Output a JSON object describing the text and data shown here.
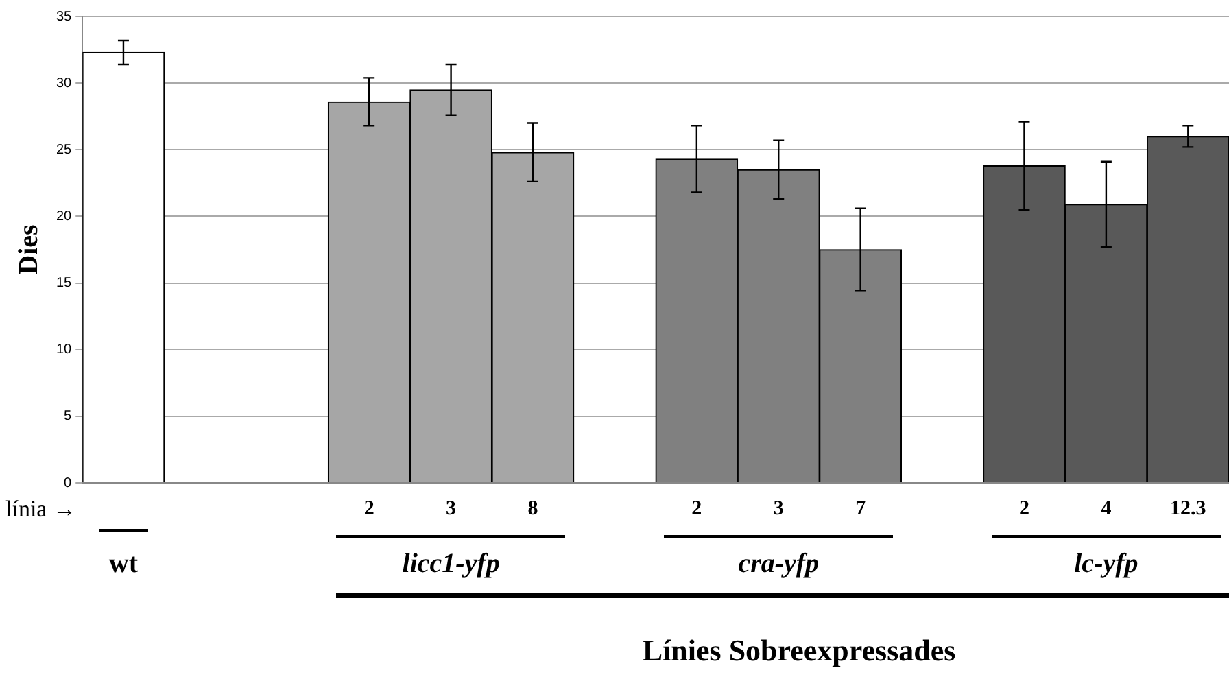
{
  "chart_data": {
    "type": "bar",
    "ylabel": "Dies",
    "xlabel": "Línies Sobreexpressades",
    "categories": [
      null,
      null,
      null,
      "2",
      "3",
      "8",
      null,
      "2",
      "3",
      "7",
      null,
      "2",
      "4",
      "12.3"
    ],
    "values": [
      32.3,
      null,
      null,
      28.6,
      29.5,
      24.8,
      null,
      24.3,
      23.5,
      17.5,
      null,
      23.8,
      20.9,
      26.0
    ],
    "errors": [
      0.9,
      null,
      null,
      1.8,
      1.9,
      2.2,
      null,
      2.5,
      2.2,
      3.1,
      null,
      3.3,
      3.2,
      0.8
    ],
    "colors": [
      "#ffffff",
      null,
      null,
      "#a6a6a6",
      "#a6a6a6",
      "#a6a6a6",
      null,
      "#808080",
      "#808080",
      "#808080",
      null,
      "#595959",
      "#595959",
      "#595959"
    ],
    "annotations": [
      "línia →",
      "wt",
      "licc1-yfp",
      "cra-yfp",
      "lc-yfp"
    ],
    "ylim": [
      0,
      35
    ],
    "yticks": [
      0,
      5,
      10,
      15,
      20,
      25,
      30,
      35
    ],
    "grid": "y",
    "legend": false
  }
}
